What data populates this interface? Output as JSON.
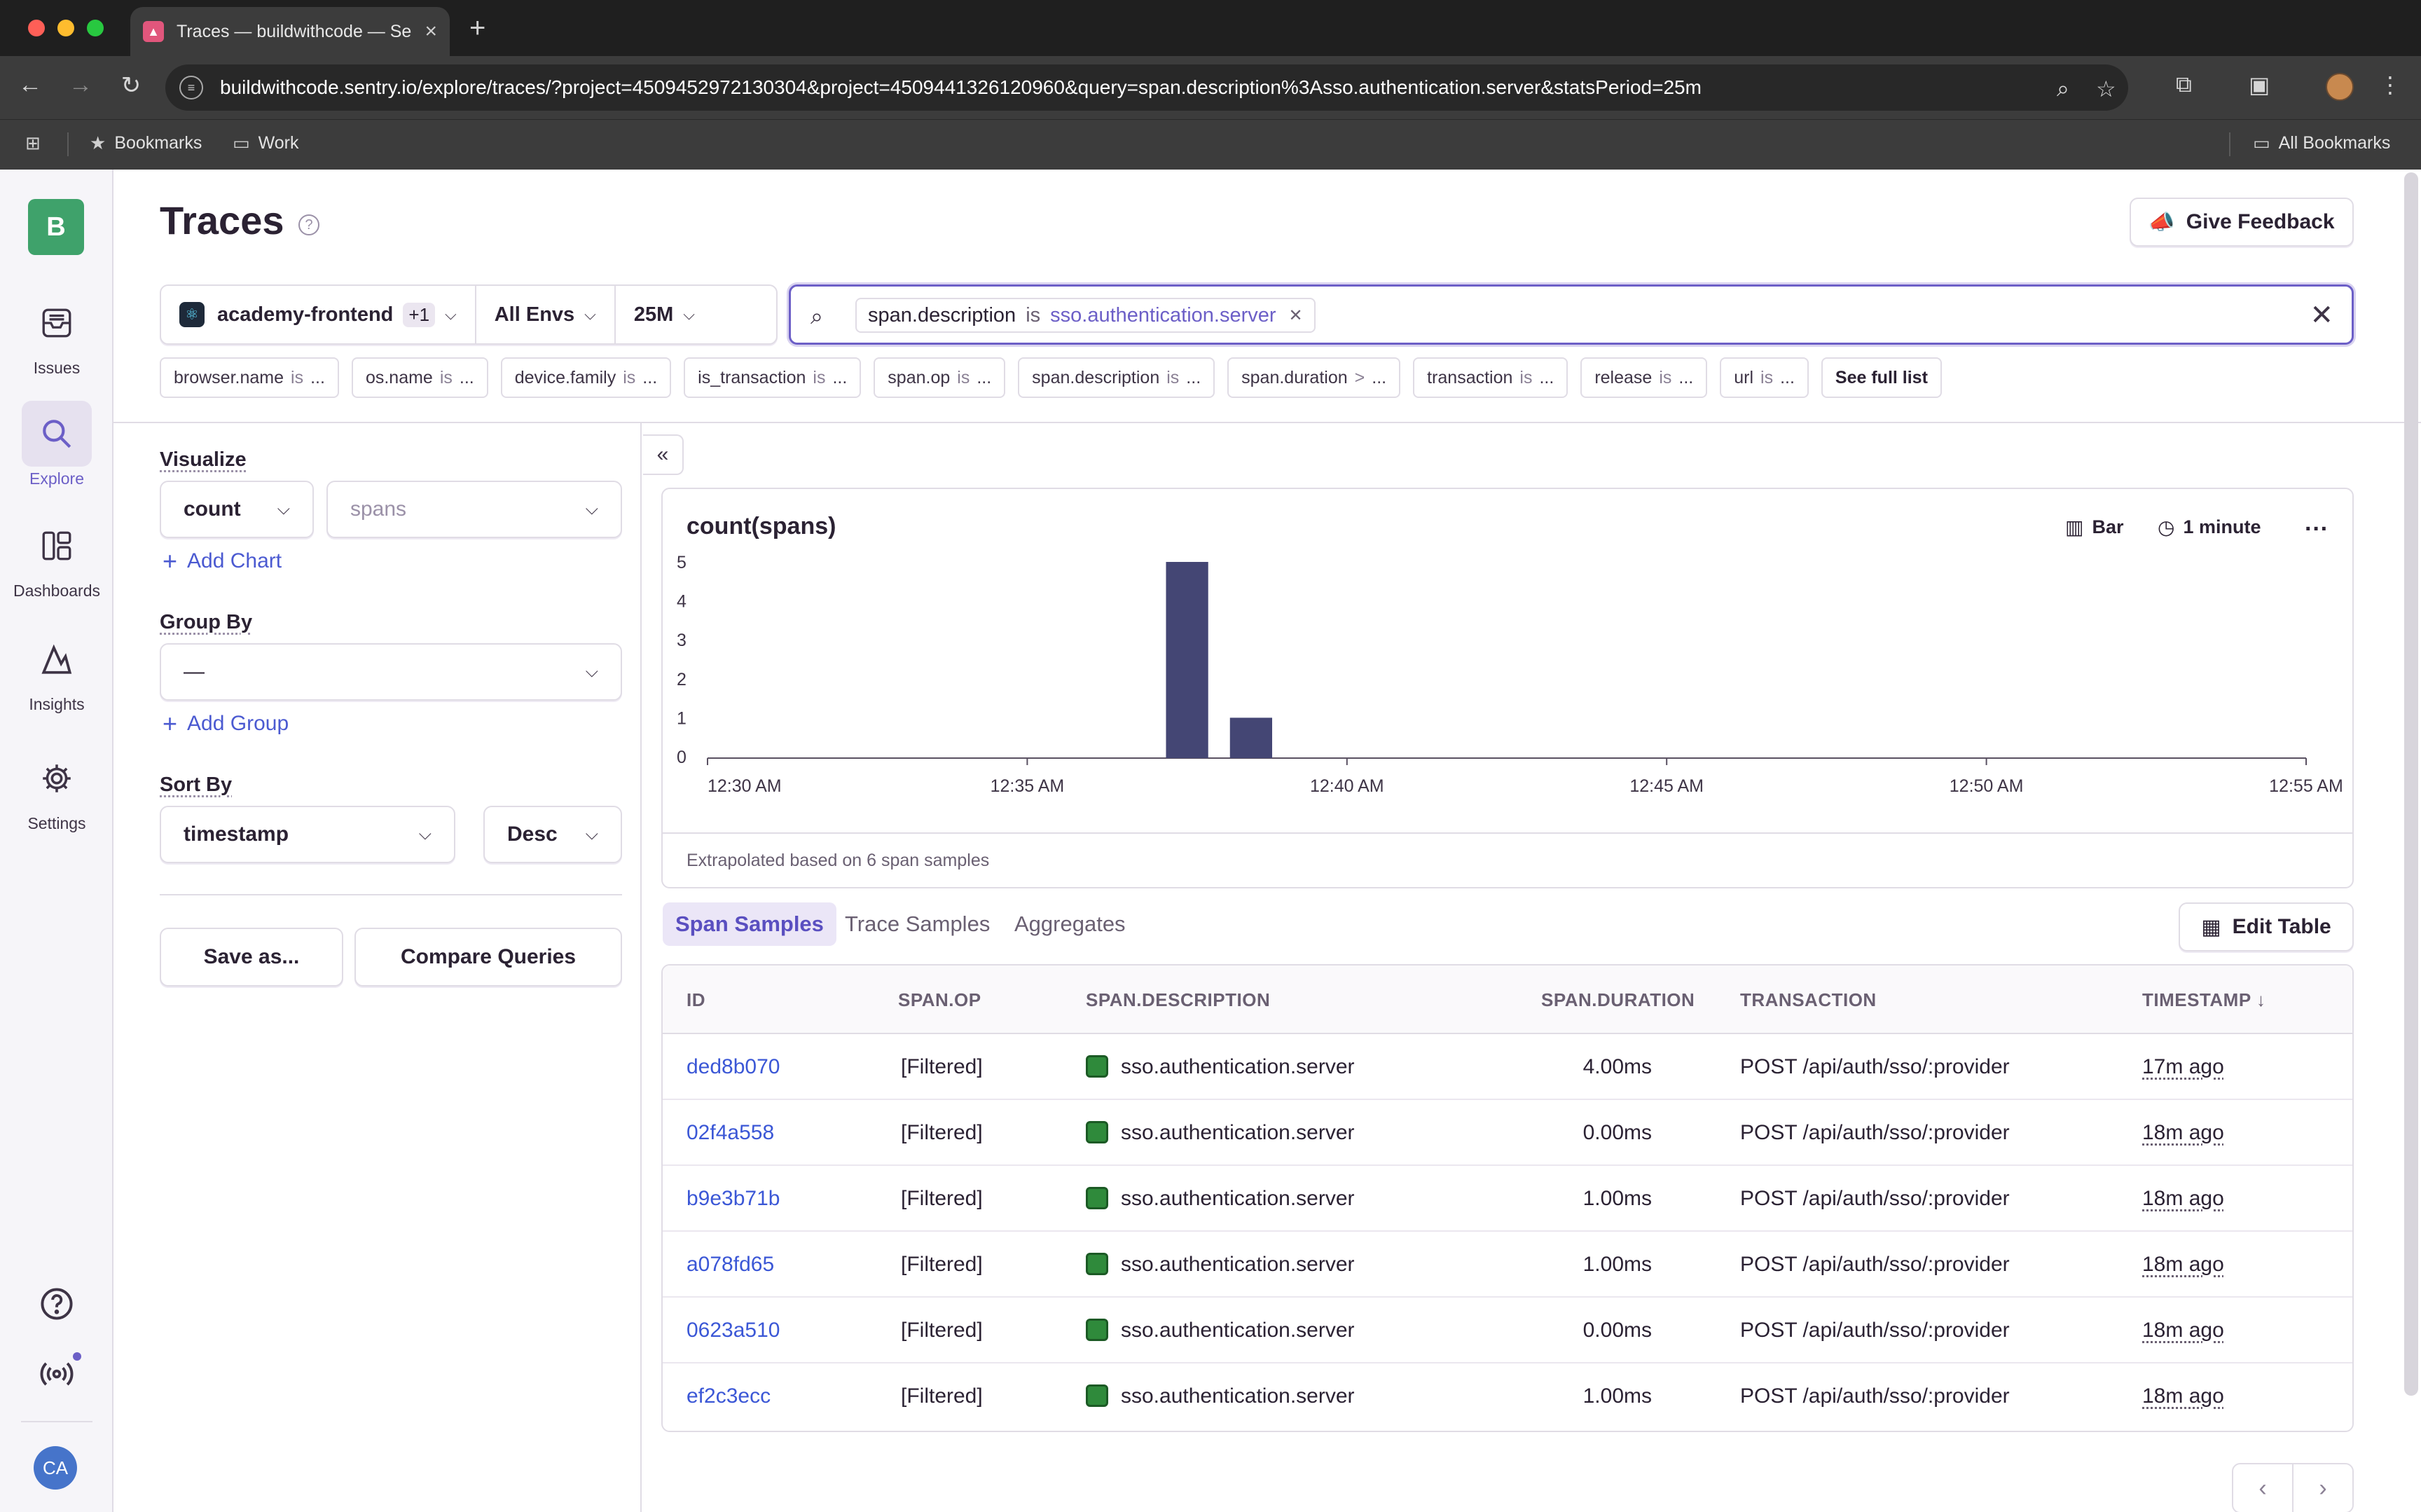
{
  "browser": {
    "tab_title": "Traces — buildwithcode — Se",
    "url": "buildwithcode.sentry.io/explore/traces/?project=4509452972130304&project=4509441326120960&query=span.description%3Asso.authentication.server&statsPeriod=25m",
    "bookmarks": [
      "Bookmarks",
      "Work"
    ],
    "all_bookmarks": "All Bookmarks"
  },
  "sidebar": {
    "org_initial": "B",
    "items": [
      {
        "label": "Issues",
        "icon": "inbox-icon"
      },
      {
        "label": "Explore",
        "icon": "search-icon"
      },
      {
        "label": "Dashboards",
        "icon": "dashboard-icon"
      },
      {
        "label": "Insights",
        "icon": "chart-line-icon"
      },
      {
        "label": "Settings",
        "icon": "gear-icon"
      }
    ],
    "user_initials": "CA"
  },
  "header": {
    "title": "Traces",
    "feedback_label": "Give Feedback"
  },
  "filters": {
    "project": "academy-frontend",
    "project_extra": "+1",
    "env": "All Envs",
    "period": "25M"
  },
  "search": {
    "token_key": "span.description",
    "token_op": "is",
    "token_value": "sso.authentication.server"
  },
  "suggestions": [
    {
      "key": "browser.name",
      "op": "is",
      "val": "..."
    },
    {
      "key": "os.name",
      "op": "is",
      "val": "..."
    },
    {
      "key": "device.family",
      "op": "is",
      "val": "..."
    },
    {
      "key": "is_transaction",
      "op": "is",
      "val": "..."
    },
    {
      "key": "span.op",
      "op": "is",
      "val": "..."
    },
    {
      "key": "span.description",
      "op": "is",
      "val": "..."
    },
    {
      "key": "span.duration",
      "op": ">",
      "val": "..."
    },
    {
      "key": "transaction",
      "op": "is",
      "val": "..."
    },
    {
      "key": "release",
      "op": "is",
      "val": "..."
    },
    {
      "key": "url",
      "op": "is",
      "val": "..."
    }
  ],
  "see_full_list": "See full list",
  "controls": {
    "visualize_label": "Visualize",
    "aggregate": "count",
    "field": "spans",
    "add_chart": "Add Chart",
    "group_by_label": "Group By",
    "group_by_value": "—",
    "add_group": "Add Group",
    "sort_by_label": "Sort By",
    "sort_field": "timestamp",
    "sort_dir": "Desc",
    "save_as": "Save as...",
    "compare": "Compare Queries"
  },
  "chart": {
    "title": "count(spans)",
    "type_label": "Bar",
    "interval_label": "1 minute",
    "footer": "Extrapolated based on 6 span samples"
  },
  "chart_data": {
    "type": "bar",
    "title": "count(spans)",
    "x_minutes": [
      "12:37 AM",
      "12:38 AM"
    ],
    "values": [
      5,
      1
    ],
    "x_tick_labels": [
      "12:30 AM",
      "12:35 AM",
      "12:40 AM",
      "12:45 AM",
      "12:50 AM",
      "12:55 AM"
    ],
    "y_tick_labels": [
      "0",
      "1",
      "2",
      "3",
      "4",
      "5"
    ],
    "ylim": [
      0,
      5
    ],
    "xlim": [
      "12:30 AM",
      "12:55 AM"
    ],
    "color": "#444674",
    "grid": false,
    "legend": "none"
  },
  "tabs": [
    "Span Samples",
    "Trace Samples",
    "Aggregates"
  ],
  "edit_table": "Edit Table",
  "table": {
    "columns": [
      "ID",
      "SPAN.OP",
      "SPAN.DESCRIPTION",
      "SPAN.DURATION",
      "TRANSACTION",
      "TIMESTAMP"
    ],
    "sort_indicator": "↓",
    "rows": [
      {
        "id": "ded8b070",
        "op": "[Filtered]",
        "desc": "sso.authentication.server",
        "dur": "4.00ms",
        "txn": "POST /api/auth/sso/:provider",
        "ts": "17m ago"
      },
      {
        "id": "02f4a558",
        "op": "[Filtered]",
        "desc": "sso.authentication.server",
        "dur": "0.00ms",
        "txn": "POST /api/auth/sso/:provider",
        "ts": "18m ago"
      },
      {
        "id": "b9e3b71b",
        "op": "[Filtered]",
        "desc": "sso.authentication.server",
        "dur": "1.00ms",
        "txn": "POST /api/auth/sso/:provider",
        "ts": "18m ago"
      },
      {
        "id": "a078fd65",
        "op": "[Filtered]",
        "desc": "sso.authentication.server",
        "dur": "1.00ms",
        "txn": "POST /api/auth/sso/:provider",
        "ts": "18m ago"
      },
      {
        "id": "0623a510",
        "op": "[Filtered]",
        "desc": "sso.authentication.server",
        "dur": "0.00ms",
        "txn": "POST /api/auth/sso/:provider",
        "ts": "18m ago"
      },
      {
        "id": "ef2c3ecc",
        "op": "[Filtered]",
        "desc": "sso.authentication.server",
        "dur": "1.00ms",
        "txn": "POST /api/auth/sso/:provider",
        "ts": "18m ago"
      }
    ]
  }
}
